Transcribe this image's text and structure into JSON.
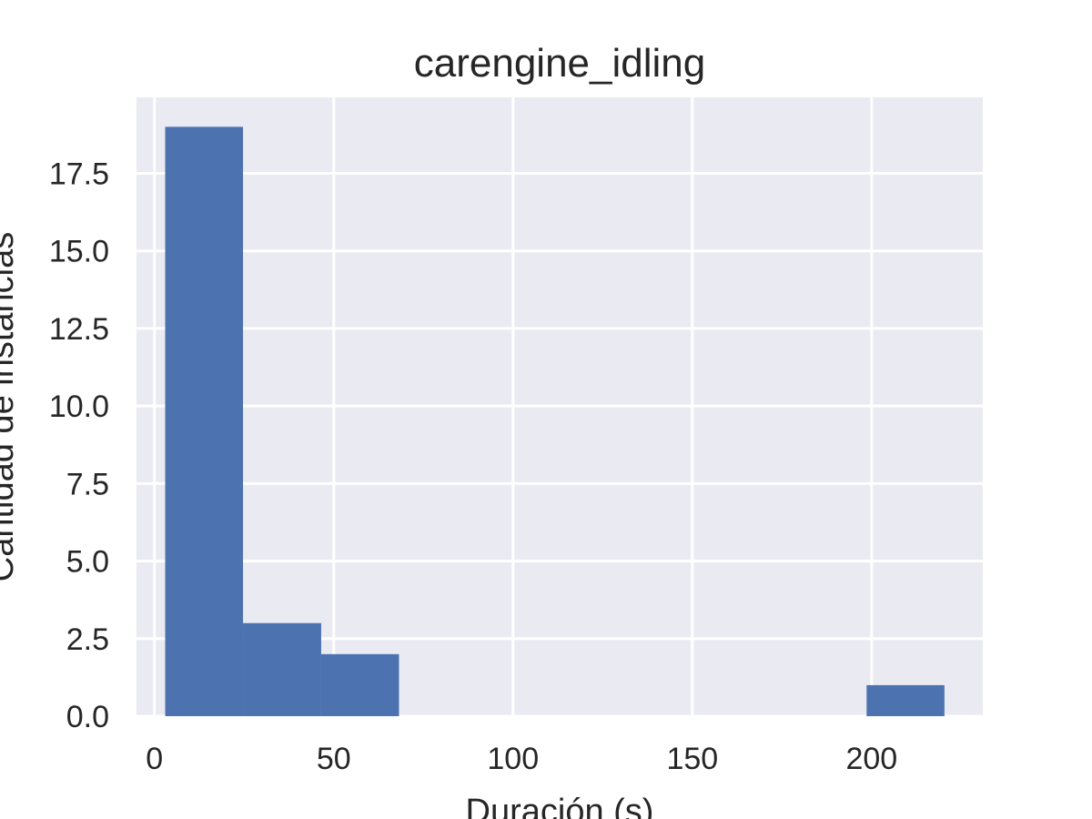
{
  "chart_data": {
    "type": "bar",
    "title": "carengine_idling",
    "xlabel": "Duración (s)",
    "ylabel": "Cantidad de instancias",
    "xlim": [
      -5,
      231
    ],
    "ylim": [
      0,
      19.95
    ],
    "xticks": [
      0,
      50,
      100,
      150,
      200
    ],
    "xtick_labels": [
      "0",
      "50",
      "100",
      "150",
      "200"
    ],
    "yticks": [
      0,
      2.5,
      5,
      7.5,
      10,
      12.5,
      15,
      17.5
    ],
    "ytick_labels": [
      "0.0",
      "2.5",
      "5.0",
      "7.5",
      "10.0",
      "12.5",
      "15.0",
      "17.5"
    ],
    "bins": [
      {
        "x0": 3,
        "x1": 24.7,
        "value": 19
      },
      {
        "x0": 24.7,
        "x1": 46.5,
        "value": 3
      },
      {
        "x0": 46.5,
        "x1": 68.2,
        "value": 2
      },
      {
        "x0": 68.2,
        "x1": 89.9,
        "value": 0
      },
      {
        "x0": 89.9,
        "x1": 111.7,
        "value": 0
      },
      {
        "x0": 111.7,
        "x1": 133.4,
        "value": 0
      },
      {
        "x0": 133.4,
        "x1": 155.1,
        "value": 0
      },
      {
        "x0": 155.1,
        "x1": 176.9,
        "value": 0
      },
      {
        "x0": 176.9,
        "x1": 198.6,
        "value": 0
      },
      {
        "x0": 198.6,
        "x1": 220.3,
        "value": 1
      }
    ],
    "bar_color": "#4c72b0",
    "background_color": "#eaeaf2",
    "grid": true,
    "legend": false
  }
}
